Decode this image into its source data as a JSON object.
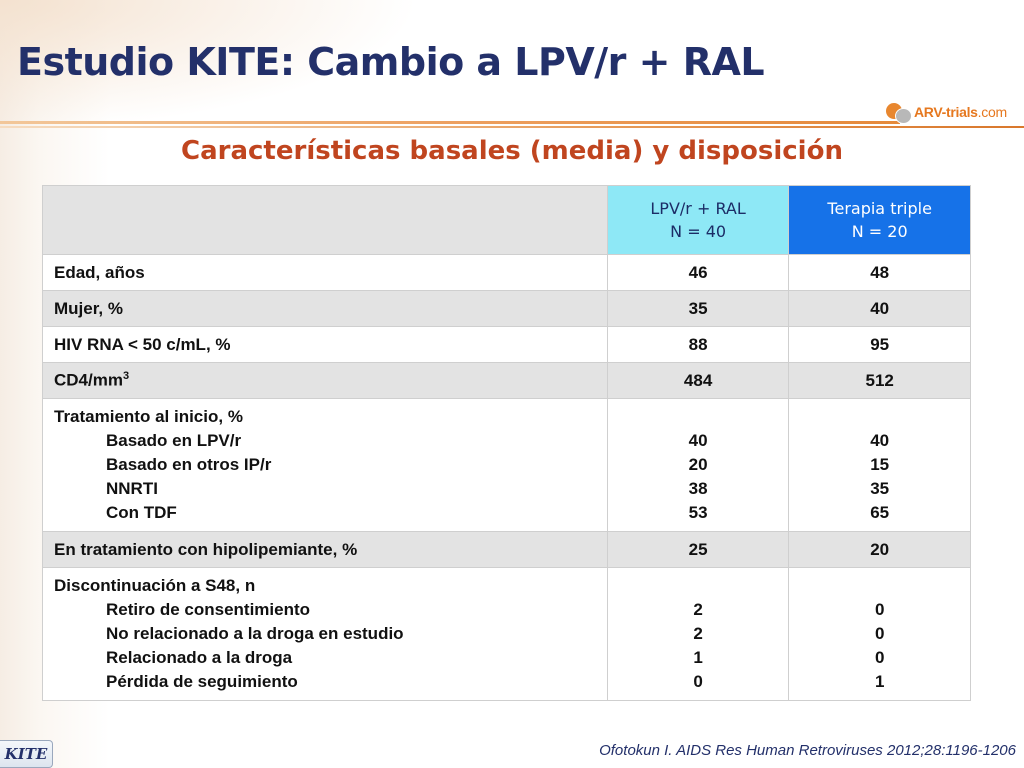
{
  "header": {
    "title": "Estudio KITE: Cambio a LPV/r + RAL",
    "logo_text": "ARV-trials",
    "logo_domain": ".com"
  },
  "subtitle": "Características basales (media) y disposición",
  "table": {
    "columns": [
      {
        "line1": "LPV/r + RAL",
        "line2": "N = 40"
      },
      {
        "line1": "Terapia triple",
        "line2": "N = 20"
      }
    ],
    "rows": [
      {
        "label": "Edad, años",
        "c1": "46",
        "c2": "48"
      },
      {
        "label": "Mujer, %",
        "c1": "35",
        "c2": "40"
      },
      {
        "label": "HIV RNA < 50 c/mL, %",
        "c1": "88",
        "c2": "95"
      },
      {
        "label": "CD4/mm",
        "label_sup": "3",
        "c1": "484",
        "c2": "512"
      },
      {
        "label": "Tratamiento al inicio, %",
        "sub": [
          {
            "label": "Basado en LPV/r",
            "c1": "40",
            "c2": "40"
          },
          {
            "label": "Basado en otros IP/r",
            "c1": "20",
            "c2": "15"
          },
          {
            "label": "NNRTI",
            "c1": "38",
            "c2": "35"
          },
          {
            "label": "Con TDF",
            "c1": "53",
            "c2": "65"
          }
        ]
      },
      {
        "label": "En tratamiento con hipolipemiante, %",
        "c1": "25",
        "c2": "20"
      },
      {
        "label": "Discontinuación a S48, n",
        "sub": [
          {
            "label": "Retiro de consentimiento",
            "c1": "2",
            "c2": "0"
          },
          {
            "label": "No relacionado a la droga en estudio",
            "c1": "2",
            "c2": "0"
          },
          {
            "label": "Relacionado a la droga",
            "c1": "1",
            "c2": "0"
          },
          {
            "label": "Pérdida de seguimiento",
            "c1": "0",
            "c2": "1"
          }
        ]
      }
    ]
  },
  "footer": {
    "tag": "KITE",
    "citation": "Ofotokun I. AIDS Res Human Retroviruses 2012;28:1196-1206"
  },
  "colors": {
    "title": "#23306a",
    "subtitle": "#c0451f",
    "col1_header": "#8ee8f6",
    "col2_header": "#1672e8",
    "row_alt": "#e3e3e3",
    "accent_rule": "#e5893a"
  }
}
